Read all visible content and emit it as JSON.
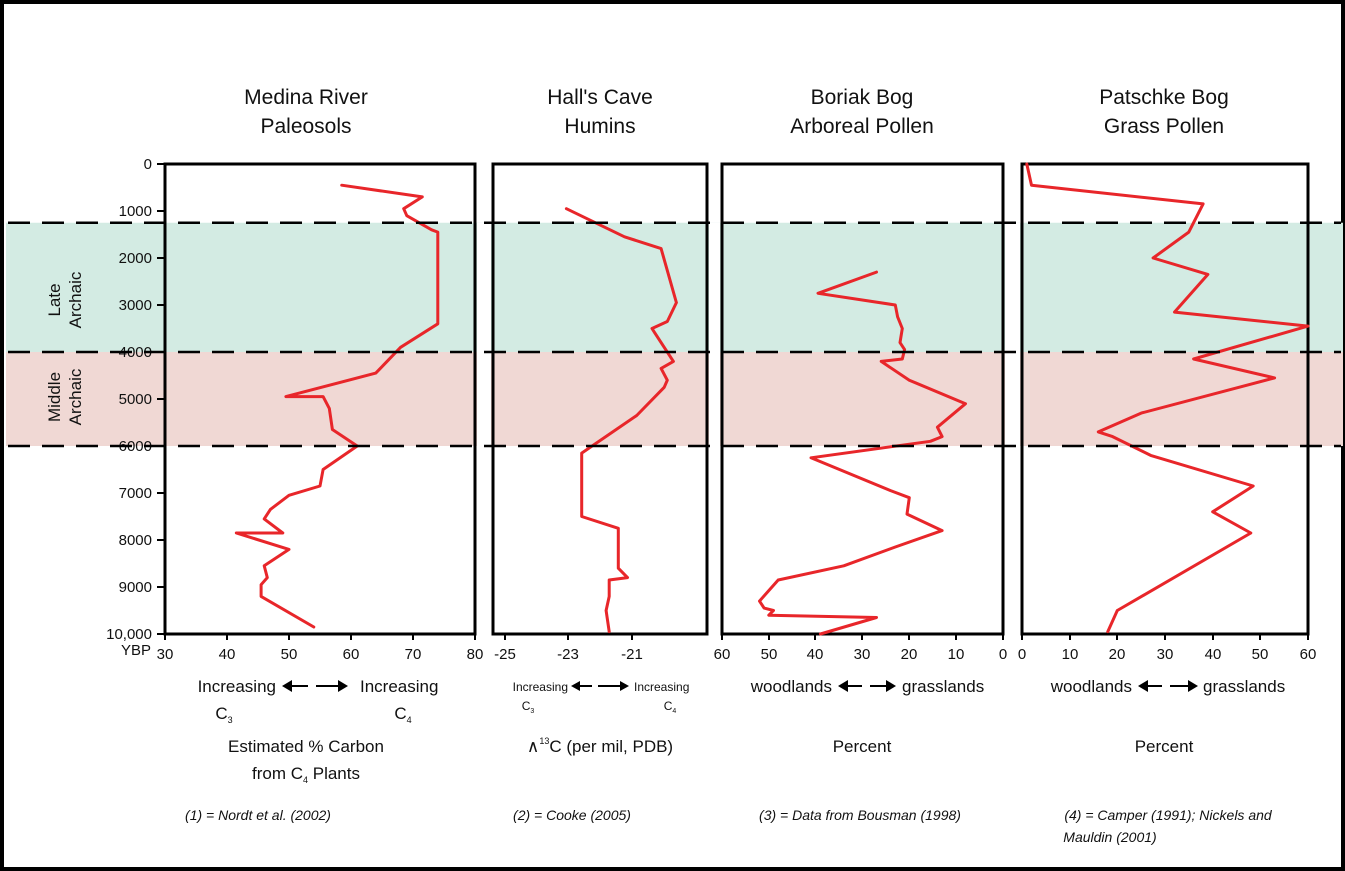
{
  "colors": {
    "line": "#e8262a",
    "late_archaic_band": "#d3ebe3",
    "middle_archaic_band": "#f0d8d4",
    "frame": "#000000"
  },
  "y_axis": {
    "ticks": [
      "0",
      "1000",
      "2000",
      "3000",
      "4000",
      "5000",
      "6000",
      "7000",
      "8000",
      "9000",
      "10,000"
    ],
    "unit": "YBP",
    "range": [
      0,
      10000
    ]
  },
  "zones": [
    {
      "label_1": "Late",
      "label_2": "Archaic",
      "from": 1250,
      "to": 4000
    },
    {
      "label_1": "Middle",
      "label_2": "Archaic",
      "from": 4000,
      "to": 6000
    }
  ],
  "panels": [
    {
      "title_1": "Medina River",
      "title_2": "Paleosols",
      "x_ticks": [
        "30",
        "40",
        "50",
        "60",
        "70",
        "80"
      ],
      "dir_left": "Increasing",
      "dir_right": "Increasing",
      "sub_left": "C",
      "sub_left_idx": "3",
      "sub_right": "C",
      "sub_right_idx": "4",
      "unit_1": "Estimated % Carbon",
      "unit_2a": "from C",
      "unit_2_idx": "4",
      "unit_2b": " Plants",
      "ref": "(1) = Nordt et al. (2002)"
    },
    {
      "title_1": "Hall's Cave",
      "title_2": "Humins",
      "x_ticks": [
        "-25",
        "-23",
        "-21"
      ],
      "dir_left": "Increasing",
      "dir_right": "Increasing",
      "sub_left": "C",
      "sub_left_idx": "3",
      "sub_right": "C",
      "sub_right_idx": "4",
      "unit_delta": "∧",
      "unit_sup": "13",
      "unit_rest": "C (per mil, PDB)",
      "ref": "(2) = Cooke (2005)"
    },
    {
      "title_1": "Boriak Bog",
      "title_2": "Arboreal Pollen",
      "x_ticks": [
        "60",
        "50",
        "40",
        "30",
        "20",
        "10",
        "0"
      ],
      "dir_left": "woodlands",
      "dir_right": "grasslands",
      "unit_1": "Percent",
      "ref": "(3) = Data from Bousman (1998)"
    },
    {
      "title_1": "Patschke Bog",
      "title_2": "Grass Pollen",
      "x_ticks": [
        "0",
        "10",
        "20",
        "30",
        "40",
        "50",
        "60"
      ],
      "dir_left": "woodlands",
      "dir_right": "grasslands",
      "unit_1": "Percent",
      "ref_1": "(4) = Camper (1991); Nickels and",
      "ref_2": "Mauldin (2001)"
    }
  ],
  "chart_data": [
    {
      "type": "line",
      "title": "Medina River Paleosols",
      "xlabel": "Estimated % Carbon from C4 Plants",
      "ylabel": "YBP",
      "xlim": [
        30,
        80
      ],
      "ylim": [
        0,
        10000
      ],
      "y_reversed": true,
      "series": [
        {
          "x": [
            58.5,
            71.5,
            68.5,
            69,
            73,
            74,
            74,
            74,
            68,
            64,
            49.5,
            55.5,
            56.5,
            57,
            61,
            55.5,
            55,
            50,
            47,
            46,
            49,
            41.5,
            50,
            46,
            46.5,
            45.5,
            45.5,
            54
          ],
          "y": [
            450,
            700,
            950,
            1100,
            1400,
            1450,
            2800,
            3400,
            3900,
            4450,
            4950,
            4950,
            5200,
            5650,
            6000,
            6500,
            6850,
            7050,
            7350,
            7550,
            7850,
            7850,
            8200,
            8550,
            8800,
            8950,
            9200,
            9850
          ]
        }
      ]
    },
    {
      "type": "line",
      "title": "Hall's Cave Humins",
      "xlabel": "δ13C (per mil, PDB)",
      "ylabel": "YBP",
      "xlim": [
        -27,
        -20
      ],
      "ylim": [
        0,
        10000
      ],
      "y_reversed": true,
      "series": [
        {
          "x": [
            -24.6,
            -22.7,
            -21.5,
            -21,
            -21.3,
            -21.8,
            -21.7,
            -21.1,
            -21.5,
            -21.3,
            -21.4,
            -22.3,
            -24.1,
            -24.1,
            -22.9,
            -22.9,
            -22.6,
            -23.2,
            -23.2,
            -23.3,
            -23.2
          ],
          "y": [
            950,
            1550,
            1800,
            2950,
            3350,
            3500,
            3600,
            4200,
            4350,
            4600,
            4750,
            5350,
            6150,
            7500,
            7750,
            8600,
            8800,
            8850,
            9200,
            9500,
            9950
          ]
        }
      ]
    },
    {
      "type": "line",
      "title": "Boriak Bog Arboreal Pollen",
      "xlabel": "Percent",
      "ylabel": "YBP",
      "xlim": [
        60,
        0
      ],
      "ylim": [
        0,
        10000
      ],
      "y_reversed": true,
      "series": [
        {
          "x": [
            27,
            39.5,
            23,
            22.5,
            21.5,
            22,
            21,
            21.5,
            26,
            20,
            8,
            14,
            13,
            15.5,
            41,
            24,
            20,
            20.5,
            13,
            23,
            34,
            48,
            52,
            51,
            49,
            50,
            27,
            39
          ],
          "y": [
            2300,
            2750,
            3000,
            3250,
            3500,
            3800,
            3950,
            4150,
            4200,
            4600,
            5100,
            5600,
            5800,
            5900,
            6250,
            6950,
            7100,
            7450,
            7800,
            8150,
            8550,
            8850,
            9300,
            9450,
            9500,
            9600,
            9650,
            10000
          ]
        }
      ]
    },
    {
      "type": "line",
      "title": "Patschke Bog Grass Pollen",
      "xlabel": "Percent",
      "ylabel": "YBP",
      "xlim": [
        0,
        60
      ],
      "ylim": [
        0,
        10000
      ],
      "y_reversed": true,
      "series": [
        {
          "x": [
            1,
            2,
            38,
            35,
            27.5,
            39,
            32,
            60,
            36,
            53,
            25,
            16,
            19,
            27,
            48.5,
            40,
            48,
            20,
            18
          ],
          "y": [
            0,
            450,
            850,
            1450,
            2000,
            2350,
            3150,
            3450,
            4150,
            4550,
            5300,
            5700,
            5800,
            6200,
            6850,
            7400,
            7850,
            9500,
            9950
          ]
        }
      ]
    }
  ]
}
